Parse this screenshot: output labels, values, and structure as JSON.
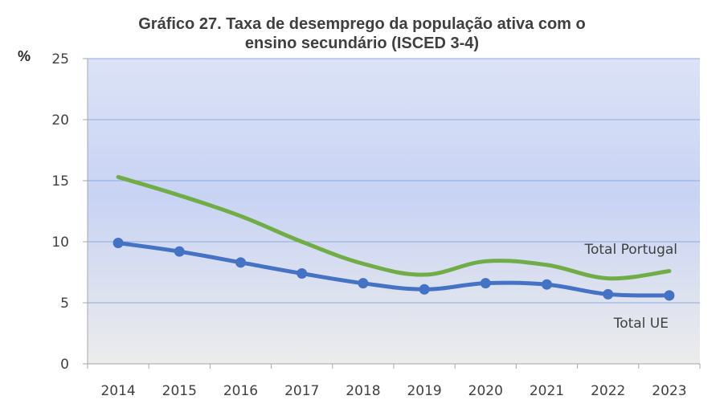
{
  "chart_data": {
    "type": "line",
    "title_line1": "Gráfico 27. Taxa de desemprego da população ativa com o",
    "title_line2": "ensino secundário (ISCED 3-4)",
    "ylabel": "%",
    "ylim": [
      0,
      25
    ],
    "yticks": [
      "0",
      "5",
      "10",
      "15",
      "20",
      "25"
    ],
    "categories": [
      "2014",
      "2015",
      "2016",
      "2017",
      "2018",
      "2019",
      "2020",
      "2021",
      "2022",
      "2023"
    ],
    "grid": true,
    "series": [
      {
        "name": "Total Portugal",
        "color": "#70AD47",
        "markers": false,
        "values": [
          15.3,
          13.8,
          12.1,
          10.0,
          8.2,
          7.3,
          8.4,
          8.1,
          7.0,
          7.6
        ]
      },
      {
        "name": "Total UE",
        "color": "#4472C4",
        "markers": true,
        "values": [
          9.9,
          9.2,
          8.3,
          7.4,
          6.6,
          6.1,
          6.6,
          6.5,
          5.7,
          5.6
        ]
      }
    ]
  }
}
